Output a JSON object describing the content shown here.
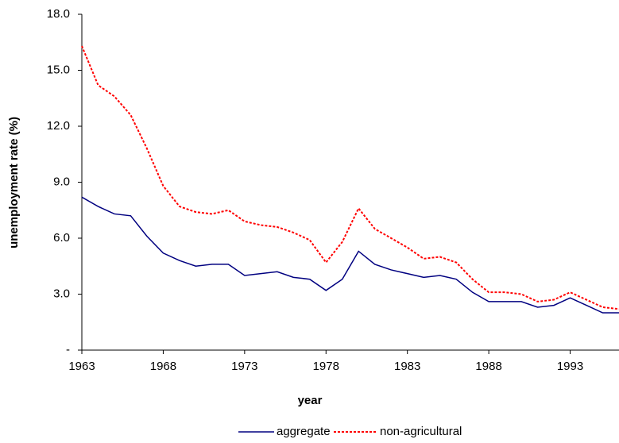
{
  "chart_data": {
    "type": "line",
    "x_label": "year",
    "y_label": "unemployment rate (%)",
    "x": [
      1963,
      1964,
      1965,
      1966,
      1967,
      1968,
      1969,
      1970,
      1971,
      1972,
      1973,
      1974,
      1975,
      1976,
      1977,
      1978,
      1979,
      1980,
      1981,
      1982,
      1983,
      1984,
      1985,
      1986,
      1987,
      1988,
      1989,
      1990,
      1991,
      1992,
      1993,
      1994,
      1995,
      1996
    ],
    "series": [
      {
        "name": "aggregate",
        "color": "#000080",
        "dash": false,
        "values": [
          8.2,
          7.7,
          7.3,
          7.2,
          6.1,
          5.2,
          4.8,
          4.5,
          4.6,
          4.6,
          4.0,
          4.1,
          4.2,
          3.9,
          3.8,
          3.2,
          3.8,
          5.3,
          4.6,
          4.3,
          4.1,
          3.9,
          4.0,
          3.8,
          3.1,
          2.6,
          2.6,
          2.6,
          2.3,
          2.4,
          2.8,
          2.4,
          2.0,
          2.0
        ]
      },
      {
        "name": "non-agricultural",
        "color": "#ff0000",
        "dash": true,
        "values": [
          16.3,
          14.2,
          13.6,
          12.6,
          10.8,
          8.8,
          7.7,
          7.4,
          7.3,
          7.5,
          6.9,
          6.7,
          6.6,
          6.3,
          5.9,
          4.7,
          5.8,
          7.6,
          6.5,
          6.0,
          5.5,
          4.9,
          5.0,
          4.7,
          3.8,
          3.1,
          3.1,
          3.0,
          2.6,
          2.7,
          3.1,
          2.7,
          2.3,
          2.2
        ]
      }
    ],
    "xlim": [
      1963,
      1996
    ],
    "xticks": [
      1963,
      1968,
      1973,
      1978,
      1983,
      1988,
      1993
    ],
    "ylim": [
      0,
      18
    ],
    "yticks": [
      {
        "value": 0,
        "label": "-"
      },
      {
        "value": 3,
        "label": "3.0"
      },
      {
        "value": 6,
        "label": "6.0"
      },
      {
        "value": 9,
        "label": "9.0"
      },
      {
        "value": 12,
        "label": "12.0"
      },
      {
        "value": 15,
        "label": "15.0"
      },
      {
        "value": 18,
        "label": "18.0"
      }
    ],
    "grid": false,
    "legend": "bottom"
  }
}
